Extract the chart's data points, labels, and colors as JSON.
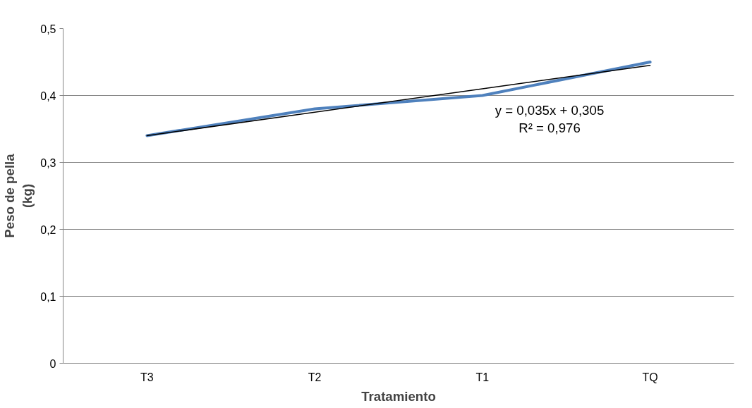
{
  "chart_data": {
    "type": "line",
    "xlabel": "Tratamiento",
    "ylabel": "Peso de pella\n(kg)",
    "categories": [
      "T3",
      "T2",
      "T1",
      "TQ"
    ],
    "series": [
      {
        "color": "#4f81bd",
        "values": [
          0.34,
          0.38,
          0.4,
          0.45
        ]
      },
      {
        "type": "line",
        "color": "#000000",
        "values": [
          0.34,
          0.375,
          0.41,
          0.445
        ]
      }
    ],
    "ylim": [
      0,
      0.5
    ],
    "yticks": [
      {
        "value": 0,
        "label": "0"
      },
      {
        "value": 0.1,
        "label": "0,1"
      },
      {
        "value": 0.2,
        "label": "0,2"
      },
      {
        "value": 0.3,
        "label": "0,3"
      },
      {
        "value": 0.4,
        "label": "0,4"
      },
      {
        "value": 0.5,
        "label": "0,5"
      }
    ],
    "grid": "y",
    "annotations": [
      "y = 0,035x + 0,305\nR² = 0,976"
    ]
  }
}
